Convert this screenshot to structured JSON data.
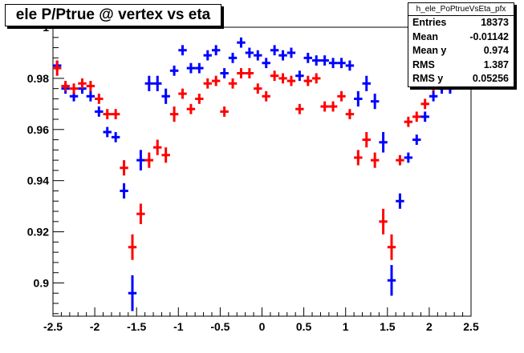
{
  "title": "ele P/Ptrue @ vertex vs eta",
  "stats": {
    "name": "h_ele_PoPtrueVsEta_pfx",
    "rows": [
      {
        "label": "Entries",
        "value": "18373"
      },
      {
        "label": "Mean",
        "value": "-0.01142"
      },
      {
        "label": "Mean y",
        "value": "0.974"
      },
      {
        "label": "RMS",
        "value": "1.387"
      },
      {
        "label": "RMS y",
        "value": "0.05256"
      }
    ]
  },
  "colors": {
    "blue": "#0000ff",
    "red": "#ff0000",
    "axis": "#000000"
  },
  "chart_data": {
    "type": "scatter",
    "xlim": [
      -2.5,
      2.5
    ],
    "ylim": [
      0.887,
      1.0
    ],
    "x_ticks": [
      -2.5,
      -2,
      -1.5,
      -1,
      -0.5,
      0,
      0.5,
      1,
      1.5,
      2,
      2.5
    ],
    "x_tick_labels": [
      "-2.5",
      "-2",
      "-1.5",
      "-1",
      "-0.5",
      "0",
      "0.5",
      "1",
      "1.5",
      "2",
      "2.5"
    ],
    "y_ticks": [
      0.9,
      0.92,
      0.94,
      0.96,
      0.98,
      1.0
    ],
    "y_tick_labels": [
      "0.9",
      "0.92",
      "0.94",
      "0.96",
      "0.98",
      "1"
    ],
    "grid": false,
    "series": [
      {
        "color": "blue",
        "points": [
          {
            "x": -2.45,
            "y": 0.985,
            "err": 0.002
          },
          {
            "x": -2.35,
            "y": 0.976,
            "err": 0.002
          },
          {
            "x": -2.25,
            "y": 0.973,
            "err": 0.002
          },
          {
            "x": -2.15,
            "y": 0.976,
            "err": 0.002
          },
          {
            "x": -2.05,
            "y": 0.973,
            "err": 0.002
          },
          {
            "x": -1.95,
            "y": 0.967,
            "err": 0.002
          },
          {
            "x": -1.85,
            "y": 0.959,
            "err": 0.002
          },
          {
            "x": -1.75,
            "y": 0.957,
            "err": 0.002
          },
          {
            "x": -1.65,
            "y": 0.936,
            "err": 0.003
          },
          {
            "x": -1.55,
            "y": 0.896,
            "err": 0.007
          },
          {
            "x": -1.45,
            "y": 0.948,
            "err": 0.004
          },
          {
            "x": -1.35,
            "y": 0.978,
            "err": 0.003
          },
          {
            "x": -1.25,
            "y": 0.978,
            "err": 0.003
          },
          {
            "x": -1.15,
            "y": 0.973,
            "err": 0.003
          },
          {
            "x": -1.05,
            "y": 0.983,
            "err": 0.002
          },
          {
            "x": -0.95,
            "y": 0.991,
            "err": 0.002
          },
          {
            "x": -0.85,
            "y": 0.984,
            "err": 0.002
          },
          {
            "x": -0.75,
            "y": 0.984,
            "err": 0.002
          },
          {
            "x": -0.65,
            "y": 0.989,
            "err": 0.002
          },
          {
            "x": -0.55,
            "y": 0.991,
            "err": 0.002
          },
          {
            "x": -0.45,
            "y": 0.982,
            "err": 0.002
          },
          {
            "x": -0.35,
            "y": 0.988,
            "err": 0.002
          },
          {
            "x": -0.25,
            "y": 0.994,
            "err": 0.002
          },
          {
            "x": -0.15,
            "y": 0.99,
            "err": 0.002
          },
          {
            "x": -0.05,
            "y": 0.989,
            "err": 0.002
          },
          {
            "x": 0.05,
            "y": 0.986,
            "err": 0.002
          },
          {
            "x": 0.15,
            "y": 0.991,
            "err": 0.002
          },
          {
            "x": 0.25,
            "y": 0.989,
            "err": 0.002
          },
          {
            "x": 0.35,
            "y": 0.99,
            "err": 0.002
          },
          {
            "x": 0.45,
            "y": 0.981,
            "err": 0.002
          },
          {
            "x": 0.55,
            "y": 0.988,
            "err": 0.002
          },
          {
            "x": 0.65,
            "y": 0.987,
            "err": 0.002
          },
          {
            "x": 0.75,
            "y": 0.987,
            "err": 0.002
          },
          {
            "x": 0.85,
            "y": 0.986,
            "err": 0.002
          },
          {
            "x": 0.95,
            "y": 0.986,
            "err": 0.002
          },
          {
            "x": 1.05,
            "y": 0.985,
            "err": 0.002
          },
          {
            "x": 1.15,
            "y": 0.972,
            "err": 0.003
          },
          {
            "x": 1.25,
            "y": 0.978,
            "err": 0.003
          },
          {
            "x": 1.35,
            "y": 0.971,
            "err": 0.003
          },
          {
            "x": 1.45,
            "y": 0.955,
            "err": 0.004
          },
          {
            "x": 1.55,
            "y": 0.901,
            "err": 0.006
          },
          {
            "x": 1.65,
            "y": 0.932,
            "err": 0.003
          },
          {
            "x": 1.75,
            "y": 0.949,
            "err": 0.002
          },
          {
            "x": 1.85,
            "y": 0.956,
            "err": 0.002
          },
          {
            "x": 1.95,
            "y": 0.965,
            "err": 0.002
          },
          {
            "x": 2.05,
            "y": 0.973,
            "err": 0.002
          },
          {
            "x": 2.15,
            "y": 0.976,
            "err": 0.002
          },
          {
            "x": 2.25,
            "y": 0.976,
            "err": 0.002
          },
          {
            "x": 2.35,
            "y": 0.979,
            "err": 0.002
          },
          {
            "x": 2.45,
            "y": 0.979,
            "err": 0.003
          }
        ]
      },
      {
        "color": "red",
        "points": [
          {
            "x": -2.45,
            "y": 0.984,
            "err": 0.003
          },
          {
            "x": -2.35,
            "y": 0.977,
            "err": 0.002
          },
          {
            "x": -2.25,
            "y": 0.976,
            "err": 0.002
          },
          {
            "x": -2.15,
            "y": 0.978,
            "err": 0.002
          },
          {
            "x": -2.05,
            "y": 0.977,
            "err": 0.002
          },
          {
            "x": -1.95,
            "y": 0.972,
            "err": 0.002
          },
          {
            "x": -1.85,
            "y": 0.966,
            "err": 0.002
          },
          {
            "x": -1.75,
            "y": 0.966,
            "err": 0.002
          },
          {
            "x": -1.65,
            "y": 0.945,
            "err": 0.003
          },
          {
            "x": -1.55,
            "y": 0.914,
            "err": 0.005
          },
          {
            "x": -1.45,
            "y": 0.927,
            "err": 0.004
          },
          {
            "x": -1.35,
            "y": 0.948,
            "err": 0.003
          },
          {
            "x": -1.25,
            "y": 0.953,
            "err": 0.003
          },
          {
            "x": -1.15,
            "y": 0.95,
            "err": 0.003
          },
          {
            "x": -1.05,
            "y": 0.966,
            "err": 0.003
          },
          {
            "x": -0.95,
            "y": 0.974,
            "err": 0.002
          },
          {
            "x": -0.85,
            "y": 0.968,
            "err": 0.002
          },
          {
            "x": -0.75,
            "y": 0.972,
            "err": 0.002
          },
          {
            "x": -0.65,
            "y": 0.978,
            "err": 0.002
          },
          {
            "x": -0.55,
            "y": 0.979,
            "err": 0.002
          },
          {
            "x": -0.45,
            "y": 0.967,
            "err": 0.002
          },
          {
            "x": -0.35,
            "y": 0.978,
            "err": 0.002
          },
          {
            "x": -0.25,
            "y": 0.982,
            "err": 0.002
          },
          {
            "x": -0.15,
            "y": 0.982,
            "err": 0.002
          },
          {
            "x": -0.05,
            "y": 0.976,
            "err": 0.002
          },
          {
            "x": 0.05,
            "y": 0.973,
            "err": 0.002
          },
          {
            "x": 0.15,
            "y": 0.981,
            "err": 0.002
          },
          {
            "x": 0.25,
            "y": 0.98,
            "err": 0.002
          },
          {
            "x": 0.35,
            "y": 0.979,
            "err": 0.002
          },
          {
            "x": 0.45,
            "y": 0.968,
            "err": 0.002
          },
          {
            "x": 0.55,
            "y": 0.979,
            "err": 0.002
          },
          {
            "x": 0.65,
            "y": 0.98,
            "err": 0.002
          },
          {
            "x": 0.75,
            "y": 0.969,
            "err": 0.002
          },
          {
            "x": 0.85,
            "y": 0.969,
            "err": 0.002
          },
          {
            "x": 0.95,
            "y": 0.973,
            "err": 0.002
          },
          {
            "x": 1.05,
            "y": 0.966,
            "err": 0.002
          },
          {
            "x": 1.15,
            "y": 0.949,
            "err": 0.003
          },
          {
            "x": 1.25,
            "y": 0.956,
            "err": 0.003
          },
          {
            "x": 1.35,
            "y": 0.948,
            "err": 0.003
          },
          {
            "x": 1.45,
            "y": 0.924,
            "err": 0.005
          },
          {
            "x": 1.55,
            "y": 0.914,
            "err": 0.005
          },
          {
            "x": 1.65,
            "y": 0.948,
            "err": 0.002
          },
          {
            "x": 1.75,
            "y": 0.963,
            "err": 0.002
          },
          {
            "x": 1.85,
            "y": 0.965,
            "err": 0.002
          },
          {
            "x": 1.95,
            "y": 0.97,
            "err": 0.002
          },
          {
            "x": 2.05,
            "y": 0.977,
            "err": 0.002
          },
          {
            "x": 2.15,
            "y": 0.979,
            "err": 0.002
          },
          {
            "x": 2.25,
            "y": 0.98,
            "err": 0.002
          },
          {
            "x": 2.35,
            "y": 0.98,
            "err": 0.002
          },
          {
            "x": 2.45,
            "y": 0.98,
            "err": 0.003
          }
        ]
      }
    ]
  }
}
